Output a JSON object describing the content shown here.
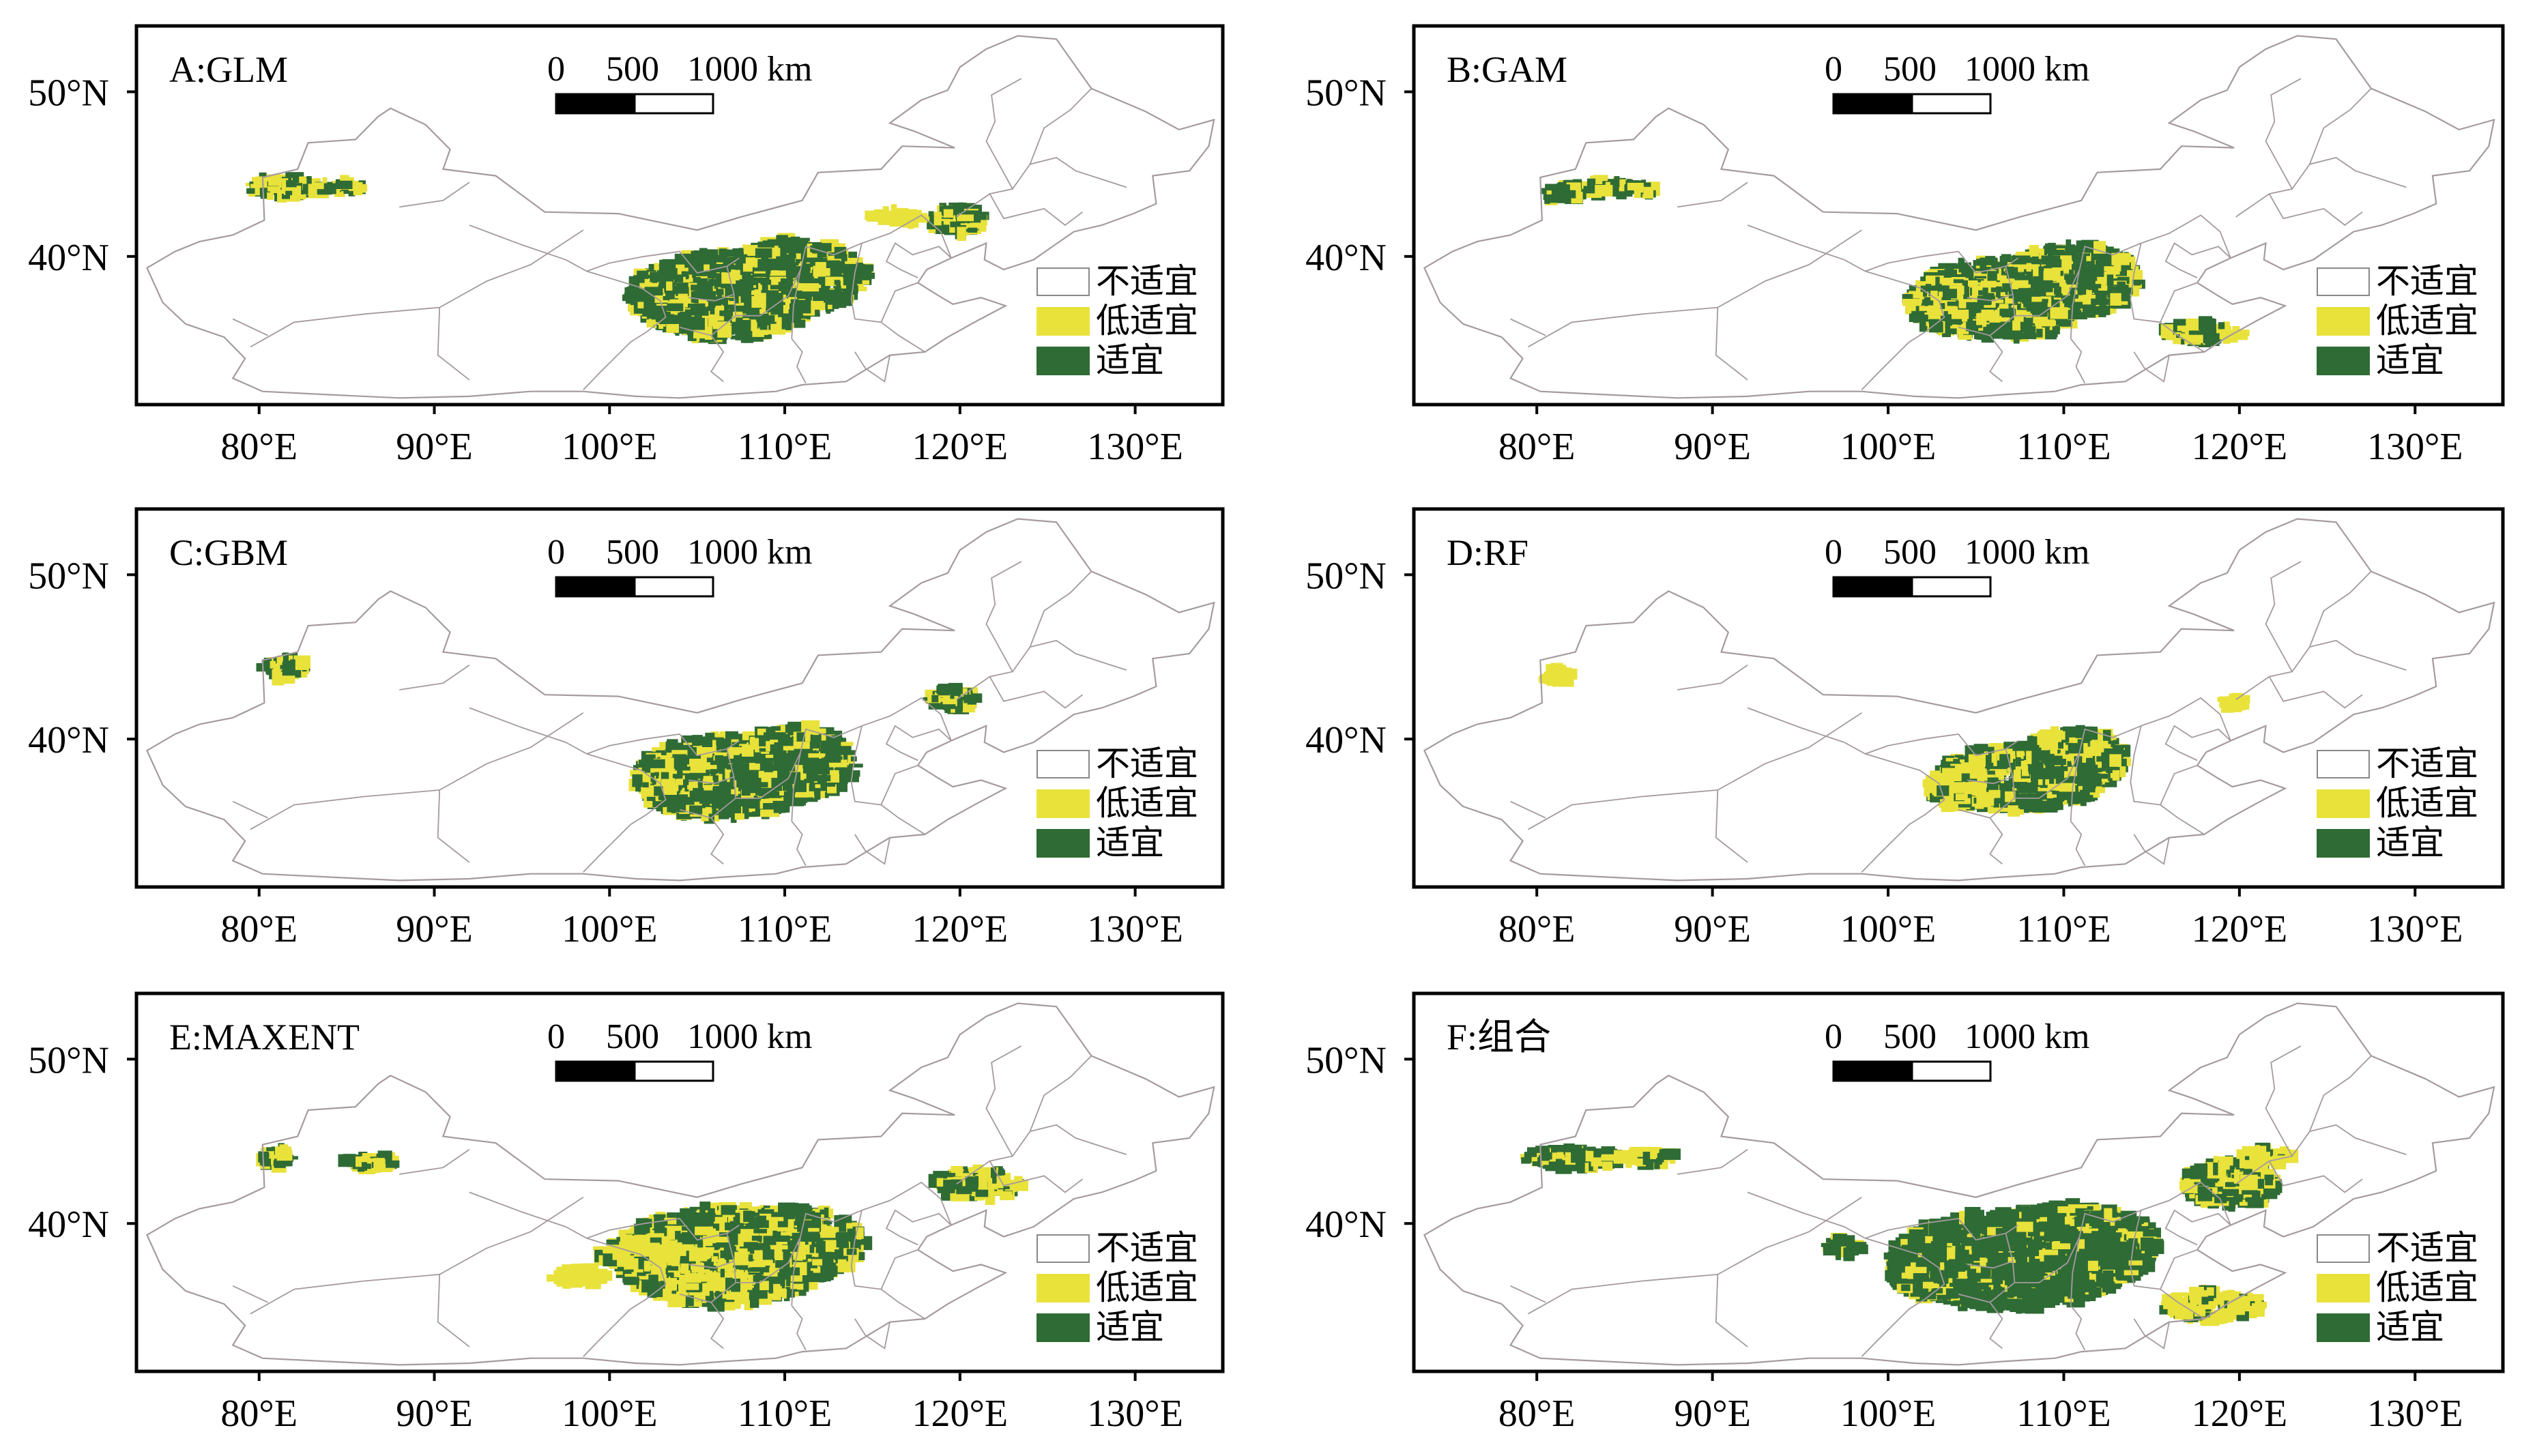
{
  "panels": [
    {
      "id": "A",
      "title": "A:GLM",
      "variant": "glm"
    },
    {
      "id": "B",
      "title": "B:GAM",
      "variant": "gam"
    },
    {
      "id": "C",
      "title": "C:GBM",
      "variant": "gbm"
    },
    {
      "id": "D",
      "title": "D:RF",
      "variant": "rf"
    },
    {
      "id": "E",
      "title": "E:MAXENT",
      "variant": "maxent"
    },
    {
      "id": "F",
      "title": "F:组合",
      "variant": "combined"
    }
  ],
  "scale_bar": {
    "label0": "0",
    "label1": "500",
    "label2": "1000 km"
  },
  "legend": [
    {
      "label": "不适宜",
      "color": "#ffffff"
    },
    {
      "label": "低适宜",
      "color": "#e8e23a"
    },
    {
      "label": "适宜",
      "color": "#2f6b35"
    }
  ],
  "lon_ticks": [
    "80°E",
    "90°E",
    "100°E",
    "110°E",
    "120°E",
    "130°E"
  ],
  "lat_ticks": [
    "50°N",
    "40°N"
  ],
  "colors": {
    "border": "#a59a9e",
    "low": "#e8e23a",
    "suitable": "#2f6b35",
    "frame": "#000000"
  }
}
